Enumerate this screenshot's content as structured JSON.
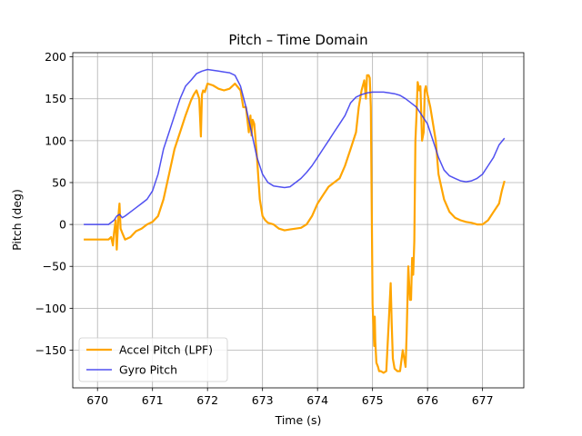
{
  "chart_data": {
    "type": "line",
    "title": "Pitch – Time Domain",
    "xlabel": "Time (s)",
    "ylabel": "Pitch (deg)",
    "xlim": [
      669.55,
      677.75
    ],
    "ylim": [
      -195,
      205
    ],
    "xticks": [
      670,
      671,
      672,
      673,
      674,
      675,
      676,
      677
    ],
    "yticks": [
      -150,
      -100,
      -50,
      0,
      50,
      100,
      150,
      200
    ],
    "xtick_labels": [
      "670",
      "671",
      "672",
      "673",
      "674",
      "675",
      "676",
      "677"
    ],
    "ytick_labels": [
      "−150",
      "−100",
      "−50",
      "0",
      "50",
      "100",
      "150",
      "200"
    ],
    "grid": true,
    "legend_position": "lower-left",
    "series": [
      {
        "name": "Accel Pitch (LPF)",
        "color": "#ffa500",
        "x": [
          669.75,
          670.0,
          670.2,
          670.25,
          670.28,
          670.3,
          670.33,
          670.35,
          670.38,
          670.4,
          670.42,
          670.45,
          670.5,
          670.6,
          670.7,
          670.8,
          670.9,
          671.0,
          671.1,
          671.2,
          671.3,
          671.4,
          671.5,
          671.6,
          671.7,
          671.75,
          671.8,
          671.85,
          671.88,
          671.9,
          671.92,
          671.95,
          672.0,
          672.1,
          672.2,
          672.3,
          672.4,
          672.5,
          672.6,
          672.65,
          672.7,
          672.75,
          672.78,
          672.8,
          672.82,
          672.85,
          672.9,
          672.95,
          673.0,
          673.05,
          673.1,
          673.2,
          673.3,
          673.4,
          673.5,
          673.6,
          673.7,
          673.8,
          673.9,
          674.0,
          674.1,
          674.2,
          674.3,
          674.4,
          674.5,
          674.6,
          674.7,
          674.75,
          674.8,
          674.85,
          674.88,
          674.9,
          674.93,
          674.95,
          674.97,
          675.0,
          675.02,
          675.03,
          675.04,
          675.05,
          675.07,
          675.1,
          675.12,
          675.15,
          675.2,
          675.25,
          675.3,
          675.33,
          675.35,
          675.37,
          675.4,
          675.45,
          675.5,
          675.55,
          675.6,
          675.62,
          675.65,
          675.68,
          675.7,
          675.72,
          675.74,
          675.76,
          675.78,
          675.8,
          675.82,
          675.85,
          675.87,
          675.9,
          675.93,
          675.95,
          675.97,
          676.0,
          676.05,
          676.1,
          676.15,
          676.2,
          676.3,
          676.4,
          676.5,
          676.6,
          676.7,
          676.8,
          676.9,
          677.0,
          677.1,
          677.2,
          677.3,
          677.35,
          677.4
        ],
        "y": [
          -18,
          -18,
          -18,
          -15,
          -25,
          -10,
          5,
          -30,
          10,
          25,
          -5,
          -10,
          -18,
          -15,
          -8,
          -5,
          0,
          3,
          10,
          30,
          60,
          90,
          110,
          130,
          148,
          155,
          160,
          150,
          105,
          155,
          160,
          158,
          168,
          166,
          162,
          160,
          162,
          168,
          160,
          140,
          140,
          110,
          130,
          106,
          125,
          120,
          80,
          30,
          10,
          5,
          2,
          0,
          -5,
          -7,
          -6,
          -5,
          -4,
          0,
          10,
          25,
          35,
          45,
          50,
          55,
          70,
          90,
          110,
          140,
          160,
          172,
          150,
          178,
          178,
          175,
          140,
          -95,
          -130,
          -145,
          -110,
          -140,
          -165,
          -170,
          -175,
          -175,
          -177,
          -175,
          -110,
          -70,
          -120,
          -160,
          -172,
          -175,
          -175,
          -150,
          -170,
          -130,
          -50,
          -90,
          -90,
          -40,
          -60,
          -20,
          100,
          130,
          170,
          160,
          165,
          100,
          110,
          160,
          165,
          155,
          140,
          120,
          100,
          60,
          30,
          15,
          8,
          5,
          3,
          2,
          0,
          0,
          5,
          15,
          25,
          40,
          52
        ]
      },
      {
        "name": "Gyro Pitch",
        "color": "#3333ee",
        "x": [
          669.75,
          670.0,
          670.2,
          670.3,
          670.35,
          670.4,
          670.45,
          670.5,
          670.6,
          670.7,
          670.8,
          670.9,
          671.0,
          671.1,
          671.2,
          671.3,
          671.4,
          671.5,
          671.6,
          671.7,
          671.8,
          671.9,
          672.0,
          672.1,
          672.2,
          672.3,
          672.4,
          672.5,
          672.6,
          672.7,
          672.8,
          672.9,
          673.0,
          673.1,
          673.2,
          673.3,
          673.4,
          673.5,
          673.6,
          673.7,
          673.8,
          673.9,
          674.0,
          674.1,
          674.2,
          674.3,
          674.4,
          674.5,
          674.6,
          674.7,
          674.8,
          674.9,
          675.0,
          675.1,
          675.2,
          675.3,
          675.4,
          675.5,
          675.6,
          675.7,
          675.8,
          675.9,
          676.0,
          676.1,
          676.2,
          676.3,
          676.4,
          676.5,
          676.6,
          676.7,
          676.8,
          676.9,
          677.0,
          677.1,
          677.2,
          677.3,
          677.4
        ],
        "y": [
          0,
          0,
          0,
          5,
          10,
          12,
          8,
          10,
          15,
          20,
          25,
          30,
          40,
          60,
          90,
          110,
          130,
          150,
          165,
          172,
          180,
          183,
          185,
          184,
          183,
          182,
          181,
          178,
          165,
          140,
          110,
          80,
          60,
          50,
          46,
          45,
          44,
          45,
          50,
          55,
          62,
          70,
          80,
          90,
          100,
          110,
          120,
          130,
          145,
          152,
          155,
          157,
          158,
          158,
          158,
          157,
          156,
          154,
          150,
          145,
          140,
          130,
          120,
          100,
          80,
          65,
          58,
          55,
          52,
          51,
          52,
          55,
          60,
          70,
          80,
          95,
          103
        ]
      }
    ]
  }
}
